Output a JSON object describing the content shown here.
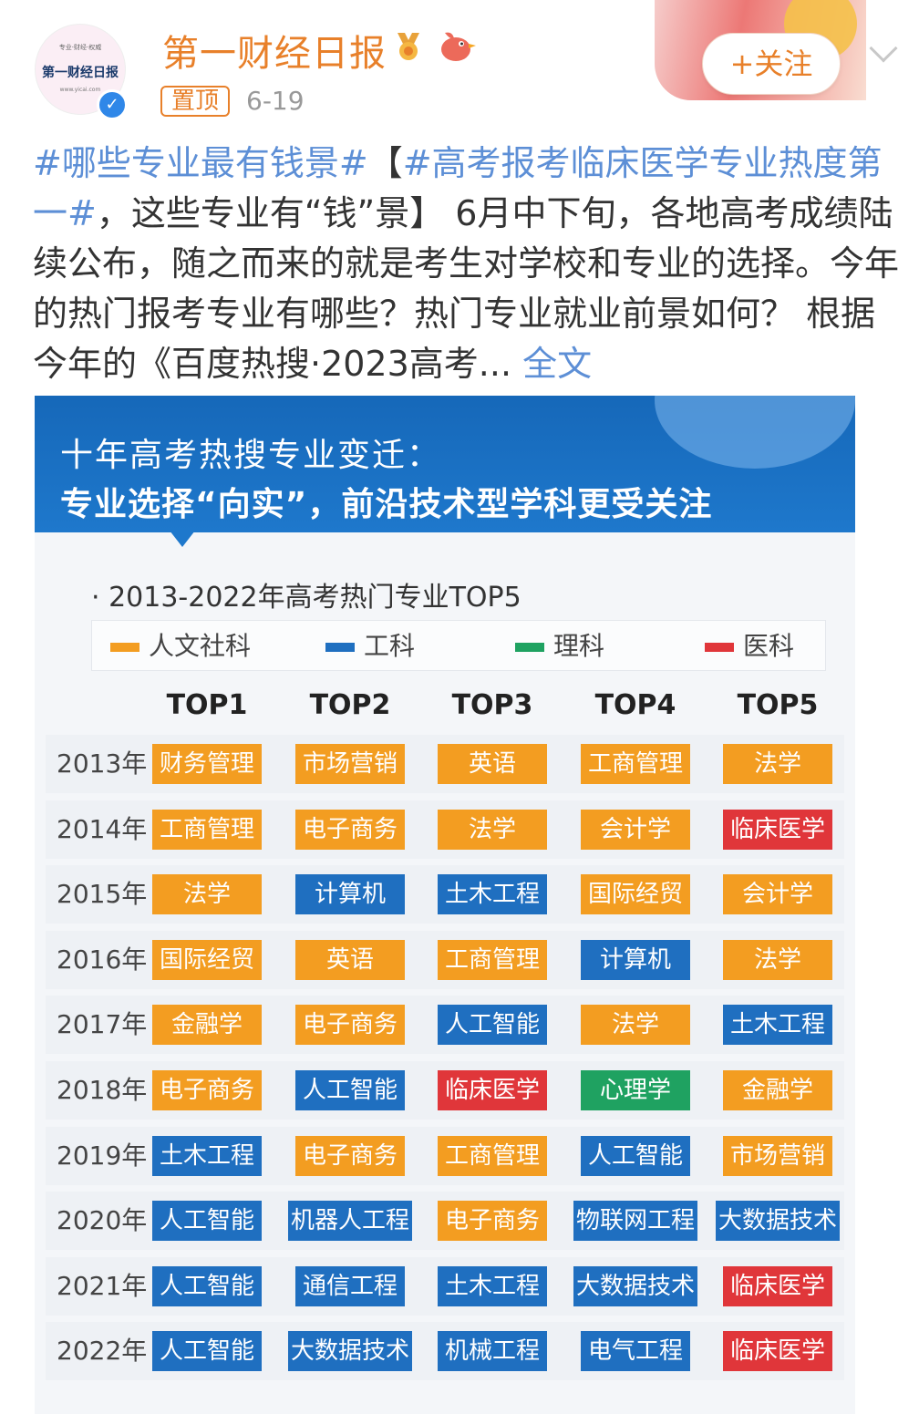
{
  "header": {
    "username": "第一财经日报",
    "avatar_text": "第一财经日报",
    "avatar_small": "专业·财经·权威",
    "avatar_url": "www.yicai.com",
    "pin_label": "置顶",
    "date": "6-19",
    "follow_label": "+关注",
    "verified_icon": "✓",
    "icons": [
      "medal-icon",
      "bird-icon",
      "chevron-down-icon",
      "verified-icon"
    ]
  },
  "post": {
    "tag1": "#哪些专业最有钱景#",
    "bracket_open": "【",
    "tag2": "#高考报考临床医学专业热度第一#",
    "text1": "，这些专业有“钱”景】 6月中下旬，各地高考成绩陆续公布，随之而来的就是考生对学校和专业的选择。今年的热门报考专业有哪些？热门专业就业前景如何？ 根据今年的《百度热搜·2023高考...",
    "more": " 全文"
  },
  "infographic": {
    "banner_line1": "十年高考热搜专业变迁：",
    "banner_line2": "专业选择“向实”，前沿技术型学科更受关注",
    "chart_title": "· 2013-2022年高考热门专业TOP5",
    "colors": {
      "humanities": "#f39d21",
      "engineering": "#1f6fc0",
      "science": "#1fa261",
      "medical": "#e0363a"
    },
    "legend": [
      {
        "key": "humanities",
        "label": "人文社科"
      },
      {
        "key": "engineering",
        "label": "工科"
      },
      {
        "key": "science",
        "label": "理科"
      },
      {
        "key": "medical",
        "label": "医科"
      }
    ],
    "columns": [
      "TOP1",
      "TOP2",
      "TOP3",
      "TOP4",
      "TOP5"
    ],
    "rows": [
      {
        "year": "2013年",
        "cells": [
          [
            "财务管理",
            "humanities"
          ],
          [
            "市场营销",
            "humanities"
          ],
          [
            "英语",
            "humanities"
          ],
          [
            "工商管理",
            "humanities"
          ],
          [
            "法学",
            "humanities"
          ]
        ]
      },
      {
        "year": "2014年",
        "cells": [
          [
            "工商管理",
            "humanities"
          ],
          [
            "电子商务",
            "humanities"
          ],
          [
            "法学",
            "humanities"
          ],
          [
            "会计学",
            "humanities"
          ],
          [
            "临床医学",
            "medical"
          ]
        ]
      },
      {
        "year": "2015年",
        "cells": [
          [
            "法学",
            "humanities"
          ],
          [
            "计算机",
            "engineering"
          ],
          [
            "土木工程",
            "engineering"
          ],
          [
            "国际经贸",
            "humanities"
          ],
          [
            "会计学",
            "humanities"
          ]
        ]
      },
      {
        "year": "2016年",
        "cells": [
          [
            "国际经贸",
            "humanities"
          ],
          [
            "英语",
            "humanities"
          ],
          [
            "工商管理",
            "humanities"
          ],
          [
            "计算机",
            "engineering"
          ],
          [
            "法学",
            "humanities"
          ]
        ]
      },
      {
        "year": "2017年",
        "cells": [
          [
            "金融学",
            "humanities"
          ],
          [
            "电子商务",
            "humanities"
          ],
          [
            "人工智能",
            "engineering"
          ],
          [
            "法学",
            "humanities"
          ],
          [
            "土木工程",
            "engineering"
          ]
        ]
      },
      {
        "year": "2018年",
        "cells": [
          [
            "电子商务",
            "humanities"
          ],
          [
            "人工智能",
            "engineering"
          ],
          [
            "临床医学",
            "medical"
          ],
          [
            "心理学",
            "science"
          ],
          [
            "金融学",
            "humanities"
          ]
        ]
      },
      {
        "year": "2019年",
        "cells": [
          [
            "土木工程",
            "engineering"
          ],
          [
            "电子商务",
            "humanities"
          ],
          [
            "工商管理",
            "humanities"
          ],
          [
            "人工智能",
            "engineering"
          ],
          [
            "市场营销",
            "humanities"
          ]
        ]
      },
      {
        "year": "2020年",
        "cells": [
          [
            "人工智能",
            "engineering"
          ],
          [
            "机器人工程",
            "engineering"
          ],
          [
            "电子商务",
            "humanities"
          ],
          [
            "物联网工程",
            "engineering"
          ],
          [
            "大数据技术",
            "engineering"
          ]
        ]
      },
      {
        "year": "2021年",
        "cells": [
          [
            "人工智能",
            "engineering"
          ],
          [
            "通信工程",
            "engineering"
          ],
          [
            "土木工程",
            "engineering"
          ],
          [
            "大数据技术",
            "engineering"
          ],
          [
            "临床医学",
            "medical"
          ]
        ]
      },
      {
        "year": "2022年",
        "cells": [
          [
            "人工智能",
            "engineering"
          ],
          [
            "大数据技术",
            "engineering"
          ],
          [
            "机械工程",
            "engineering"
          ],
          [
            "电气工程",
            "engineering"
          ],
          [
            "临床医学",
            "medical"
          ]
        ]
      }
    ]
  }
}
